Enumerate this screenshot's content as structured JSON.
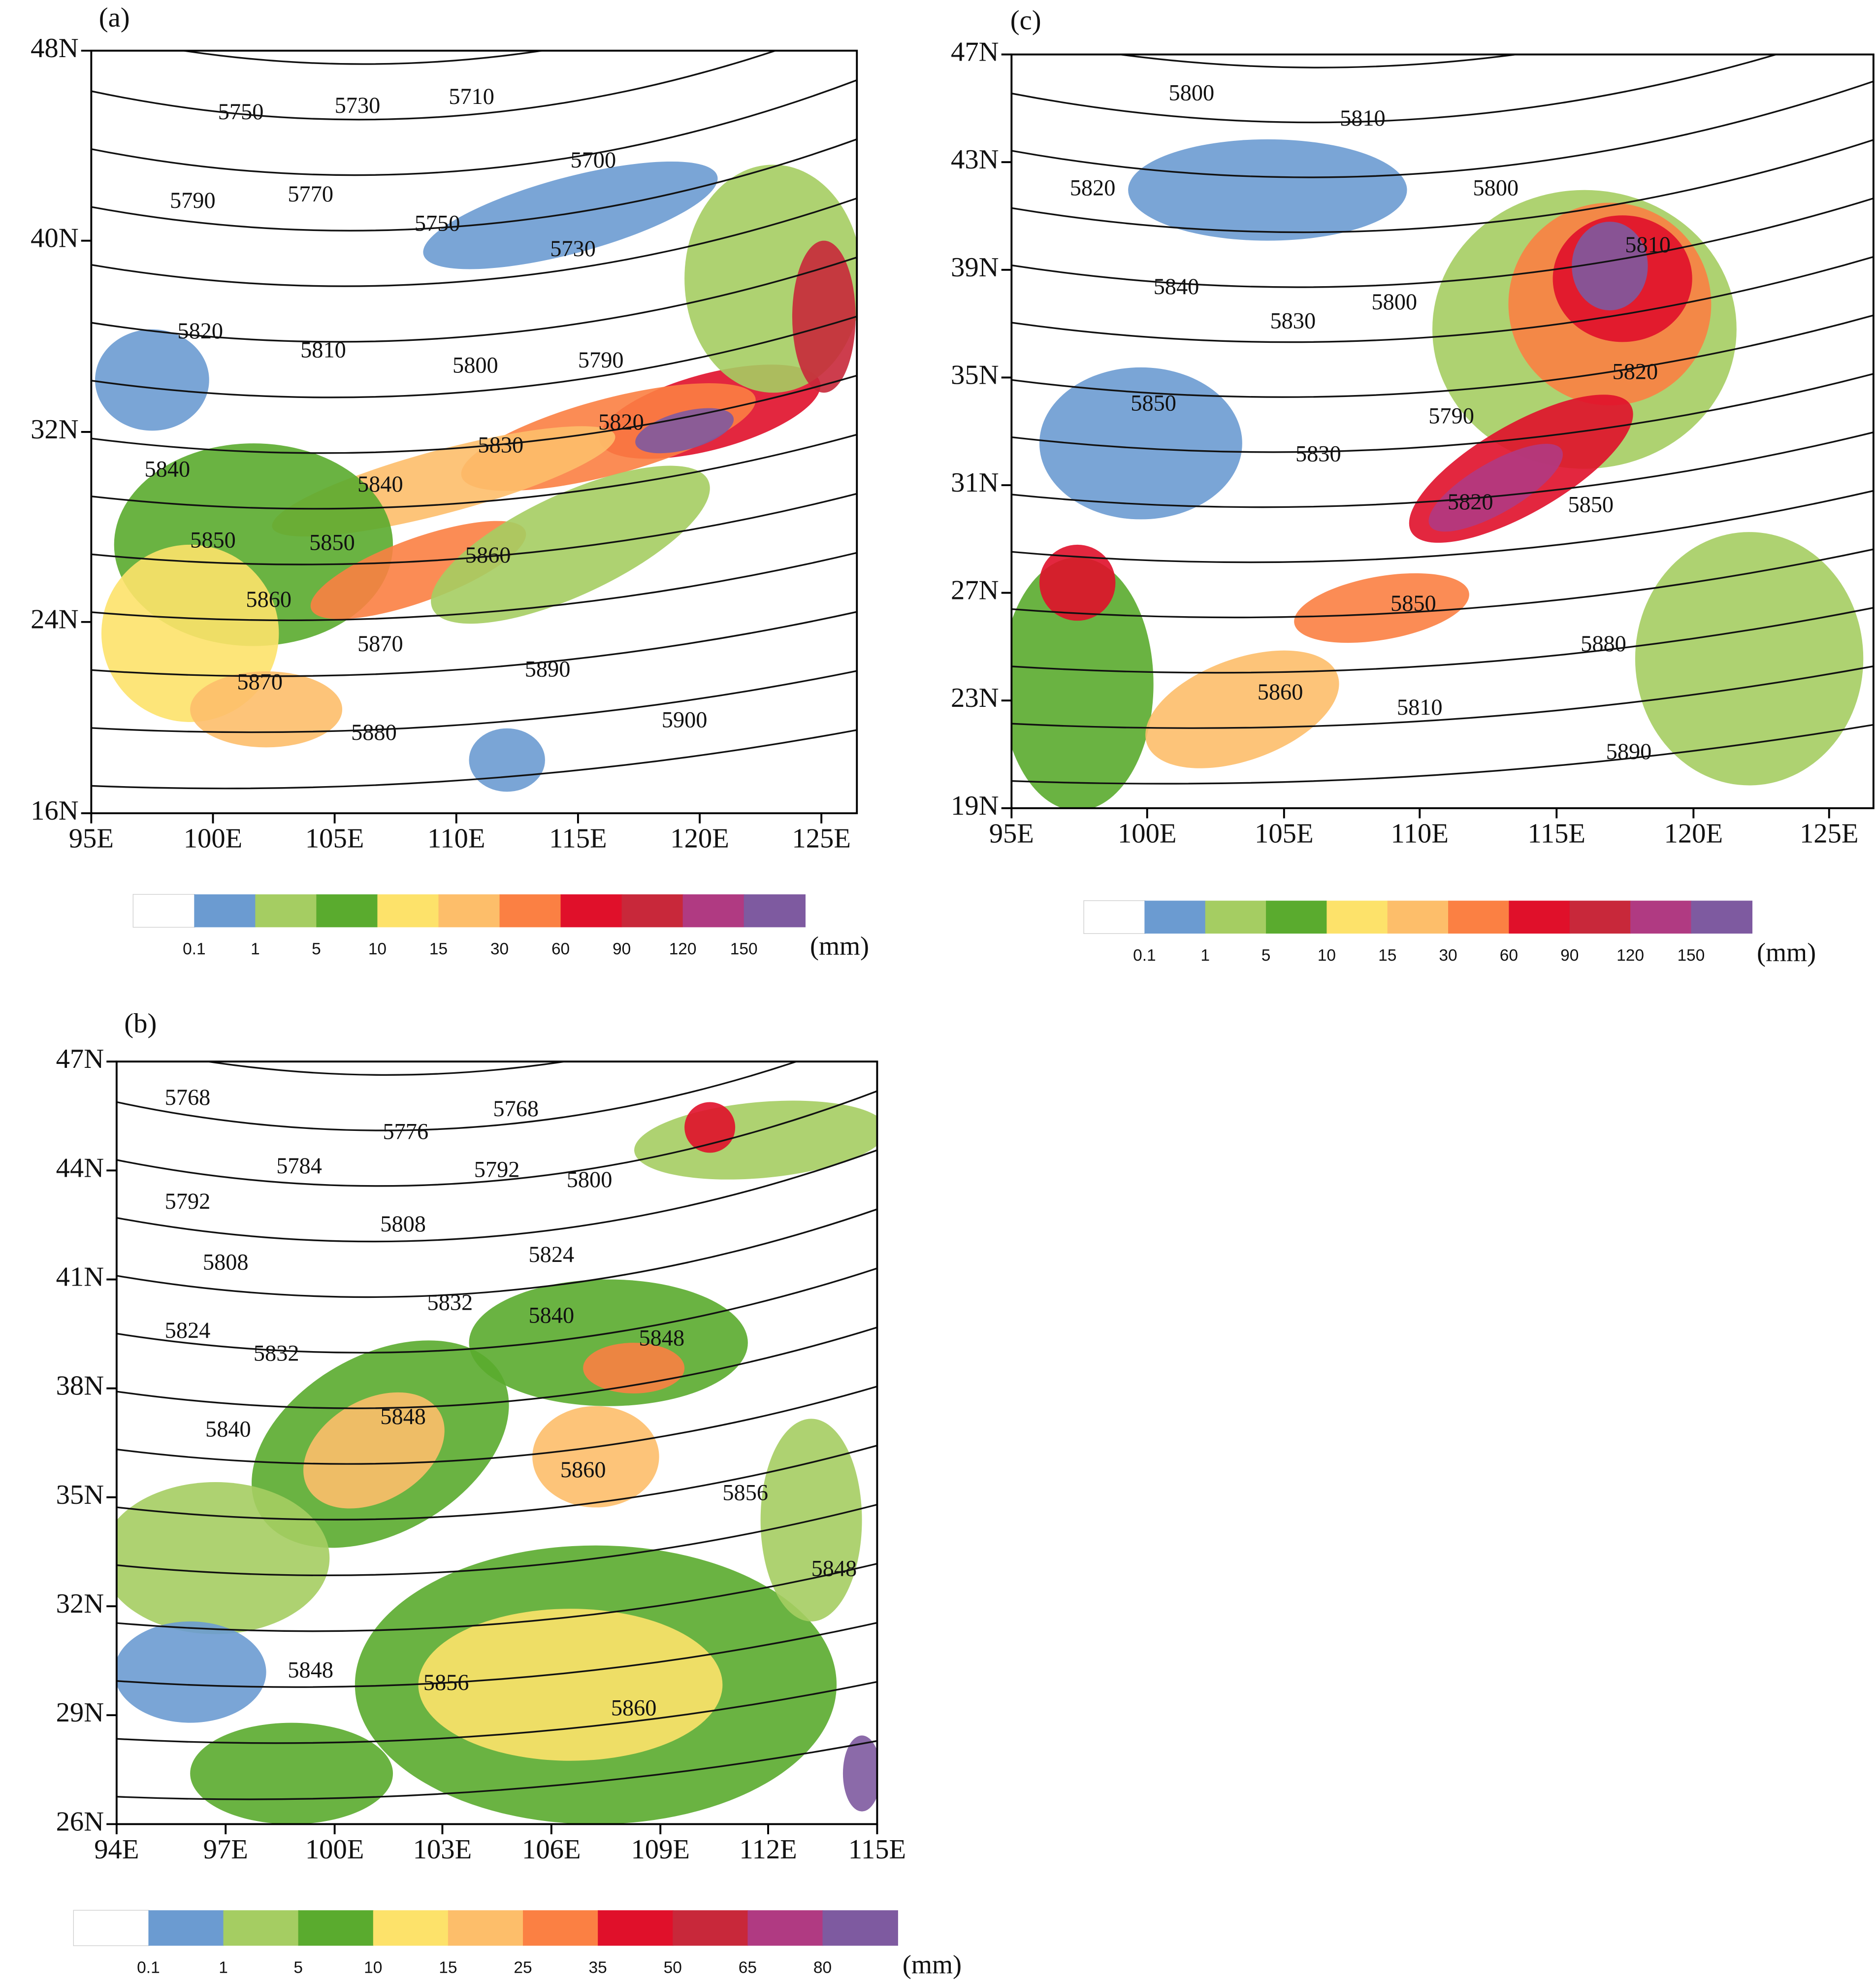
{
  "panels": [
    {
      "label": "(a)",
      "lat_ticks": [
        "48N",
        "40N",
        "32N",
        "24N",
        "16N"
      ],
      "lon_ticks": [
        "95E",
        "100E",
        "105E",
        "110E",
        "115E",
        "120E",
        "125E"
      ],
      "contour_labels": [
        5750,
        5730,
        5710,
        5700,
        5790,
        5770,
        5750,
        5730,
        5820,
        5810,
        5800,
        5790,
        5830,
        5820,
        5840,
        5840,
        5850,
        5850,
        5860,
        5860,
        5870,
        5870,
        5880,
        5890,
        5900
      ],
      "colorbar": {
        "levels": [
          0.1,
          1,
          5,
          10,
          15,
          30,
          60,
          90,
          120,
          150
        ],
        "unit": "(mm)",
        "colors": [
          "#ffffff",
          "#6b9bd1",
          "#a5cd62",
          "#5aab2e",
          "#fde26a",
          "#fdbe6a",
          "#fb8043",
          "#e0102a",
          "#c8283a",
          "#b03a82",
          "#7e5aa0"
        ]
      }
    },
    {
      "label": "(c)",
      "lat_ticks": [
        "47N",
        "43N",
        "39N",
        "35N",
        "31N",
        "27N",
        "23N",
        "19N"
      ],
      "lon_ticks": [
        "95E",
        "100E",
        "105E",
        "110E",
        "115E",
        "120E",
        "125E"
      ],
      "contour_labels": [
        5800,
        5810,
        5820,
        5800,
        5840,
        5830,
        5800,
        5850,
        5790,
        5830,
        5810,
        5820,
        5820,
        5850,
        5850,
        5880,
        5860,
        5810,
        5890
      ],
      "colorbar": {
        "levels": [
          0.1,
          1,
          5,
          10,
          15,
          30,
          60,
          90,
          120,
          150
        ],
        "unit": "(mm)",
        "colors": [
          "#ffffff",
          "#6b9bd1",
          "#a5cd62",
          "#5aab2e",
          "#fde26a",
          "#fdbe6a",
          "#fb8043",
          "#e0102a",
          "#c8283a",
          "#b03a82",
          "#7e5aa0"
        ]
      }
    },
    {
      "label": "(b)",
      "lat_ticks": [
        "47N",
        "44N",
        "41N",
        "38N",
        "35N",
        "32N",
        "29N",
        "26N"
      ],
      "lon_ticks": [
        "94E",
        "97E",
        "100E",
        "103E",
        "106E",
        "109E",
        "112E",
        "115E"
      ],
      "contour_labels": [
        5768,
        5768,
        5776,
        5784,
        5792,
        5800,
        5792,
        5808,
        5808,
        5824,
        5832,
        5824,
        5840,
        5832,
        5848,
        5848,
        5840,
        5860,
        5856,
        5848,
        5848,
        5856,
        5860
      ],
      "colorbar": {
        "levels": [
          0.1,
          1,
          5,
          10,
          15,
          25,
          35,
          50,
          65,
          80
        ],
        "unit": "(mm)",
        "colors": [
          "#ffffff",
          "#6b9bd1",
          "#a5cd62",
          "#5aab2e",
          "#fde26a",
          "#fdbe6a",
          "#fb8043",
          "#e0102a",
          "#c8283a",
          "#b03a82",
          "#7e5aa0"
        ]
      }
    }
  ]
}
